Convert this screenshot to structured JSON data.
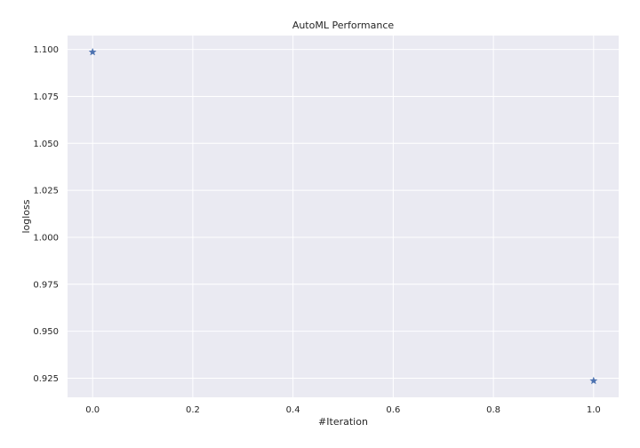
{
  "chart_data": {
    "type": "scatter",
    "title": "AutoML Performance",
    "xlabel": "#Iteration",
    "ylabel": "logloss",
    "marker": "star",
    "grid": true,
    "series": [
      {
        "x": [
          0.0,
          1.0
        ],
        "y": [
          1.0986,
          0.9236
        ]
      }
    ],
    "xlim": [
      -0.05,
      1.05
    ],
    "ylim": [
      0.9148,
      1.1074
    ],
    "xticks": [
      "0.0",
      "0.2",
      "0.4",
      "0.6",
      "0.8",
      "1.0"
    ],
    "yticks": [
      "0.925",
      "0.950",
      "0.975",
      "1.000",
      "1.025",
      "1.050",
      "1.075",
      "1.100"
    ],
    "colors": {
      "background": "#EAEAF2",
      "grid": "#FFFFFF",
      "marker": "#4C72B0"
    }
  }
}
